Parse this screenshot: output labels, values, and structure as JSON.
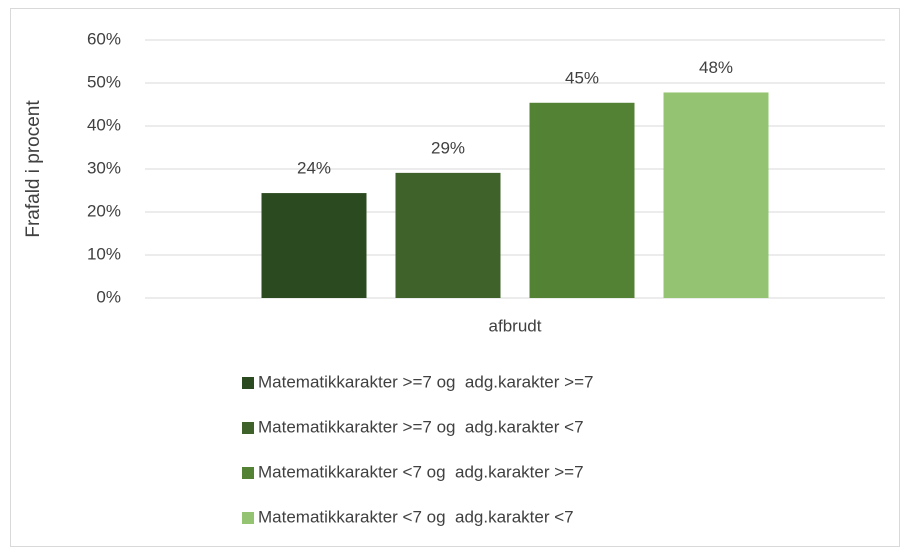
{
  "chart_data": {
    "type": "bar",
    "y_label": "Frafald i procent",
    "categories": [
      "afbrudt"
    ],
    "series": [
      {
        "name": "Matematikkarakter >=7 og  adg.karakter >=7",
        "color": "#2b4a1f",
        "values": [
          24.4
        ],
        "value_labels": [
          "24%"
        ]
      },
      {
        "name": "Matematikkarakter >=7 og  adg.karakter <7",
        "color": "#3e6229",
        "values": [
          29.1
        ],
        "value_labels": [
          "29%"
        ]
      },
      {
        "name": "Matematikkarakter <7 og  adg.karakter >=7",
        "color": "#548235",
        "values": [
          45.4
        ],
        "value_labels": [
          "45%"
        ]
      },
      {
        "name": "Matematikkarakter <7 og  adg.karakter <7",
        "color": "#94c472",
        "values": [
          47.8
        ],
        "value_labels": [
          "48%"
        ]
      }
    ],
    "ylim": [
      0,
      60
    ],
    "yticks": [
      {
        "value": 0,
        "label": "0%"
      },
      {
        "value": 10,
        "label": "10%"
      },
      {
        "value": 20,
        "label": "20%"
      },
      {
        "value": 30,
        "label": "30%"
      },
      {
        "value": 40,
        "label": "40%"
      },
      {
        "value": 50,
        "label": "50%"
      },
      {
        "value": 60,
        "label": "60%"
      }
    ],
    "grid": true,
    "legend": "bottom"
  }
}
